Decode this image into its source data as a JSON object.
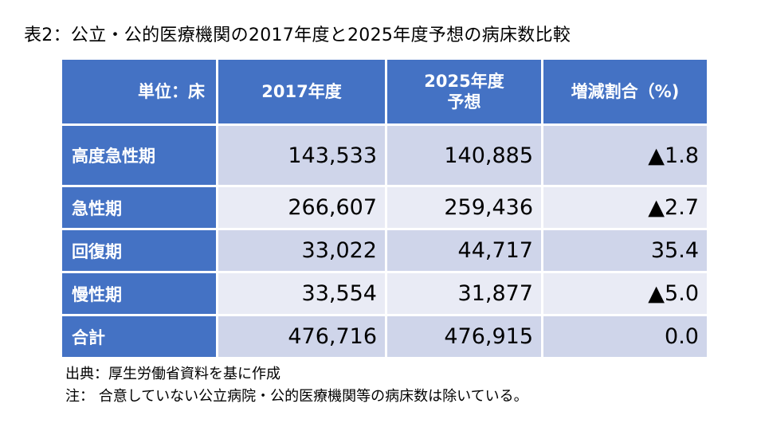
{
  "title": "表2：公立・公的医療機関の2017年度と2025年度予想の病床数比較",
  "table": {
    "headers": {
      "unit": "単位：床",
      "col1": "2017年度",
      "col2_line1": "2025年度",
      "col2_line2": "予想",
      "col3": "増減割合（%)"
    },
    "rows": [
      {
        "label": "高度急性期",
        "y2017": "143,533",
        "y2025": "140,885",
        "change": "▲1.8"
      },
      {
        "label": "急性期",
        "y2017": "266,607",
        "y2025": "259,436",
        "change": "▲2.7"
      },
      {
        "label": "回復期",
        "y2017": "33,022",
        "y2025": "44,717",
        "change": "35.4"
      },
      {
        "label": "慢性期",
        "y2017": "33,554",
        "y2025": "31,877",
        "change": "▲5.0"
      },
      {
        "label": "合計",
        "y2017": "476,716",
        "y2025": "476,915",
        "change": "0.0"
      }
    ]
  },
  "notes": {
    "source": "出典：厚生労働省資料を基に作成",
    "note": "注： 合意していない公立病院・公的医療機関等の病床数は除いている。"
  },
  "colors": {
    "header_blue": "#4472c4",
    "row_band_dark": "#cfd5ea",
    "row_band_light": "#e9ebf5"
  }
}
